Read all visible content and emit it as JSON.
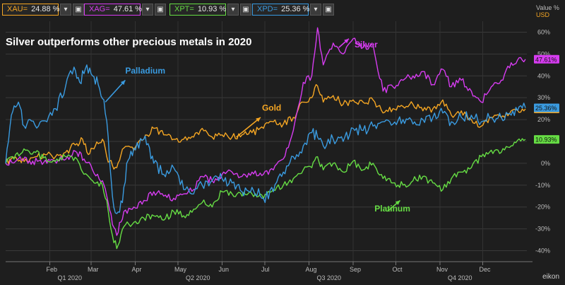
{
  "legend": [
    {
      "ric": "XAU=",
      "value": "24.88 %",
      "color": "#f5a623",
      "series_index": 0
    },
    {
      "ric": "XAG=",
      "value": "47.61 %",
      "color": "#d63cf0",
      "series_index": 1
    },
    {
      "ric": "XPT=",
      "value": "10.93 %",
      "color": "#66dd44",
      "series_index": 2
    },
    {
      "ric": "XPD=",
      "value": "25.36 %",
      "color": "#3a9be0",
      "series_index": 3
    }
  ],
  "watermark": "eikon",
  "chart_data": {
    "type": "line",
    "title": "Silver outperforms other precious metals in 2020",
    "ylabel": "Value %\nUSD",
    "ylim": [
      -45,
      65
    ],
    "yticks": [
      -40,
      -30,
      -20,
      -10,
      0,
      10,
      20,
      30,
      40,
      50,
      60
    ],
    "ytick_suffix": "%",
    "xlim": [
      "2020-01-01",
      "2021-01-01"
    ],
    "x_months": [
      {
        "label": "Feb",
        "date": "2020-02-01"
      },
      {
        "label": "Mar",
        "date": "2020-03-01"
      },
      {
        "label": "Apr",
        "date": "2020-04-01"
      },
      {
        "label": "May",
        "date": "2020-05-01"
      },
      {
        "label": "Jun",
        "date": "2020-06-01"
      },
      {
        "label": "Jul",
        "date": "2020-07-01"
      },
      {
        "label": "Aug",
        "date": "2020-08-01"
      },
      {
        "label": "Sep",
        "date": "2020-09-01"
      },
      {
        "label": "Oct",
        "date": "2020-10-01"
      },
      {
        "label": "Nov",
        "date": "2020-11-01"
      },
      {
        "label": "Dec",
        "date": "2020-12-01"
      }
    ],
    "x_quarters": [
      {
        "label": "Q1 2020",
        "date": "2020-02-15"
      },
      {
        "label": "Q2 2020",
        "date": "2020-05-15"
      },
      {
        "label": "Q3 2020",
        "date": "2020-08-15"
      },
      {
        "label": "Q4 2020",
        "date": "2020-11-15"
      }
    ],
    "grid": true,
    "series": [
      {
        "name": "Gold",
        "color": "#f5a623",
        "end_label": "24.88%",
        "points": [
          [
            "2020-01-01",
            0
          ],
          [
            "2020-01-06",
            3
          ],
          [
            "2020-01-10",
            1
          ],
          [
            "2020-01-15",
            2
          ],
          [
            "2020-01-22",
            3
          ],
          [
            "2020-01-30",
            4
          ],
          [
            "2020-02-05",
            3
          ],
          [
            "2020-02-12",
            5
          ],
          [
            "2020-02-20",
            9
          ],
          [
            "2020-02-24",
            11
          ],
          [
            "2020-02-28",
            4
          ],
          [
            "2020-03-04",
            8
          ],
          [
            "2020-03-09",
            11
          ],
          [
            "2020-03-12",
            3
          ],
          [
            "2020-03-16",
            -1
          ],
          [
            "2020-03-19",
            -2
          ],
          [
            "2020-03-24",
            7
          ],
          [
            "2020-03-31",
            6
          ],
          [
            "2020-04-07",
            11
          ],
          [
            "2020-04-14",
            16
          ],
          [
            "2020-04-21",
            13
          ],
          [
            "2020-04-28",
            11
          ],
          [
            "2020-05-05",
            11
          ],
          [
            "2020-05-12",
            12
          ],
          [
            "2020-05-18",
            16
          ],
          [
            "2020-05-25",
            12
          ],
          [
            "2020-06-01",
            13
          ],
          [
            "2020-06-08",
            12
          ],
          [
            "2020-06-15",
            13
          ],
          [
            "2020-06-22",
            14
          ],
          [
            "2020-06-30",
            16
          ],
          [
            "2020-07-07",
            19
          ],
          [
            "2020-07-14",
            18
          ],
          [
            "2020-07-21",
            21
          ],
          [
            "2020-07-28",
            28
          ],
          [
            "2020-08-03",
            30
          ],
          [
            "2020-08-06",
            36
          ],
          [
            "2020-08-11",
            28
          ],
          [
            "2020-08-18",
            31
          ],
          [
            "2020-08-25",
            27
          ],
          [
            "2020-09-01",
            29
          ],
          [
            "2020-09-08",
            28
          ],
          [
            "2020-09-15",
            29
          ],
          [
            "2020-09-22",
            23
          ],
          [
            "2020-09-29",
            25
          ],
          [
            "2020-10-06",
            26
          ],
          [
            "2020-10-13",
            27
          ],
          [
            "2020-10-20",
            24
          ],
          [
            "2020-10-27",
            25
          ],
          [
            "2020-11-03",
            29
          ],
          [
            "2020-11-09",
            22
          ],
          [
            "2020-11-16",
            24
          ],
          [
            "2020-11-23",
            20
          ],
          [
            "2020-11-30",
            17
          ],
          [
            "2020-12-07",
            21
          ],
          [
            "2020-12-14",
            21
          ],
          [
            "2020-12-21",
            24
          ],
          [
            "2020-12-31",
            24.88
          ]
        ]
      },
      {
        "name": "Silver",
        "color": "#d63cf0",
        "end_label": "47.61%",
        "points": [
          [
            "2020-01-01",
            0
          ],
          [
            "2020-01-10",
            2
          ],
          [
            "2020-01-20",
            1
          ],
          [
            "2020-01-30",
            0
          ],
          [
            "2020-02-10",
            2
          ],
          [
            "2020-02-20",
            5
          ],
          [
            "2020-02-25",
            2
          ],
          [
            "2020-03-02",
            -3
          ],
          [
            "2020-03-09",
            -8
          ],
          [
            "2020-03-12",
            -15
          ],
          [
            "2020-03-16",
            -28
          ],
          [
            "2020-03-19",
            -33
          ],
          [
            "2020-03-24",
            -22
          ],
          [
            "2020-03-31",
            -20
          ],
          [
            "2020-04-07",
            -17
          ],
          [
            "2020-04-14",
            -13
          ],
          [
            "2020-04-21",
            -15
          ],
          [
            "2020-04-28",
            -16
          ],
          [
            "2020-05-05",
            -14
          ],
          [
            "2020-05-12",
            -12
          ],
          [
            "2020-05-18",
            -6
          ],
          [
            "2020-05-25",
            -8
          ],
          [
            "2020-06-01",
            -5
          ],
          [
            "2020-06-08",
            -4
          ],
          [
            "2020-06-15",
            -6
          ],
          [
            "2020-06-22",
            -4
          ],
          [
            "2020-06-30",
            -5
          ],
          [
            "2020-07-07",
            -3
          ],
          [
            "2020-07-14",
            2
          ],
          [
            "2020-07-21",
            15
          ],
          [
            "2020-07-28",
            37
          ],
          [
            "2020-08-03",
            40
          ],
          [
            "2020-08-07",
            62
          ],
          [
            "2020-08-11",
            45
          ],
          [
            "2020-08-18",
            55
          ],
          [
            "2020-08-25",
            50
          ],
          [
            "2020-09-01",
            57
          ],
          [
            "2020-09-08",
            53
          ],
          [
            "2020-09-15",
            54
          ],
          [
            "2020-09-22",
            33
          ],
          [
            "2020-09-29",
            35
          ],
          [
            "2020-10-06",
            38
          ],
          [
            "2020-10-13",
            40
          ],
          [
            "2020-10-20",
            42
          ],
          [
            "2020-10-27",
            36
          ],
          [
            "2020-11-03",
            43
          ],
          [
            "2020-11-09",
            35
          ],
          [
            "2020-11-16",
            38
          ],
          [
            "2020-11-23",
            33
          ],
          [
            "2020-11-30",
            28
          ],
          [
            "2020-12-07",
            35
          ],
          [
            "2020-12-14",
            38
          ],
          [
            "2020-12-21",
            46
          ],
          [
            "2020-12-31",
            47.61
          ]
        ]
      },
      {
        "name": "Platinum",
        "color": "#66dd44",
        "end_label": "10.93%",
        "points": [
          [
            "2020-01-01",
            0
          ],
          [
            "2020-01-08",
            4
          ],
          [
            "2020-01-15",
            6
          ],
          [
            "2020-01-22",
            5
          ],
          [
            "2020-01-30",
            1
          ],
          [
            "2020-02-06",
            2
          ],
          [
            "2020-02-13",
            3
          ],
          [
            "2020-02-20",
            2
          ],
          [
            "2020-02-25",
            -5
          ],
          [
            "2020-03-02",
            -8
          ],
          [
            "2020-03-09",
            -10
          ],
          [
            "2020-03-12",
            -17
          ],
          [
            "2020-03-16",
            -33
          ],
          [
            "2020-03-19",
            -39
          ],
          [
            "2020-03-24",
            -29
          ],
          [
            "2020-03-31",
            -27
          ],
          [
            "2020-04-07",
            -25
          ],
          [
            "2020-04-14",
            -24
          ],
          [
            "2020-04-21",
            -26
          ],
          [
            "2020-04-28",
            -22
          ],
          [
            "2020-05-05",
            -24
          ],
          [
            "2020-05-12",
            -21
          ],
          [
            "2020-05-18",
            -18
          ],
          [
            "2020-05-25",
            -20
          ],
          [
            "2020-06-01",
            -13
          ],
          [
            "2020-06-08",
            -14
          ],
          [
            "2020-06-15",
            -15
          ],
          [
            "2020-06-22",
            -14
          ],
          [
            "2020-06-30",
            -16
          ],
          [
            "2020-07-07",
            -12
          ],
          [
            "2020-07-14",
            -10
          ],
          [
            "2020-07-21",
            -7
          ],
          [
            "2020-07-28",
            -3
          ],
          [
            "2020-08-03",
            -2
          ],
          [
            "2020-08-07",
            3
          ],
          [
            "2020-08-11",
            -3
          ],
          [
            "2020-08-18",
            0
          ],
          [
            "2020-08-25",
            -4
          ],
          [
            "2020-09-01",
            1
          ],
          [
            "2020-09-08",
            -3
          ],
          [
            "2020-09-15",
            0
          ],
          [
            "2020-09-22",
            -7
          ],
          [
            "2020-09-29",
            -9
          ],
          [
            "2020-10-06",
            -10
          ],
          [
            "2020-10-13",
            -8
          ],
          [
            "2020-10-20",
            -6
          ],
          [
            "2020-10-27",
            -9
          ],
          [
            "2020-11-03",
            -12
          ],
          [
            "2020-11-09",
            -7
          ],
          [
            "2020-11-16",
            -4
          ],
          [
            "2020-11-23",
            -2
          ],
          [
            "2020-11-30",
            3
          ],
          [
            "2020-12-07",
            6
          ],
          [
            "2020-12-14",
            5
          ],
          [
            "2020-12-21",
            8
          ],
          [
            "2020-12-31",
            10.93
          ]
        ]
      },
      {
        "name": "Palladium",
        "color": "#3a9be0",
        "end_label": "25.36%",
        "points": [
          [
            "2020-01-01",
            0
          ],
          [
            "2020-01-05",
            22
          ],
          [
            "2020-01-10",
            28
          ],
          [
            "2020-01-14",
            17
          ],
          [
            "2020-01-18",
            20
          ],
          [
            "2020-01-24",
            17
          ],
          [
            "2020-01-30",
            19
          ],
          [
            "2020-02-05",
            25
          ],
          [
            "2020-02-12",
            35
          ],
          [
            "2020-02-18",
            44
          ],
          [
            "2020-02-22",
            37
          ],
          [
            "2020-02-27",
            45
          ],
          [
            "2020-03-02",
            40
          ],
          [
            "2020-03-06",
            36
          ],
          [
            "2020-03-10",
            29
          ],
          [
            "2020-03-13",
            12
          ],
          [
            "2020-03-16",
            -15
          ],
          [
            "2020-03-19",
            -23
          ],
          [
            "2020-03-23",
            -18
          ],
          [
            "2020-03-26",
            0
          ],
          [
            "2020-03-31",
            7
          ],
          [
            "2020-04-07",
            11
          ],
          [
            "2020-04-10",
            9
          ],
          [
            "2020-04-14",
            0
          ],
          [
            "2020-04-21",
            -5
          ],
          [
            "2020-04-28",
            -2
          ],
          [
            "2020-05-05",
            -12
          ],
          [
            "2020-05-12",
            -14
          ],
          [
            "2020-05-18",
            -10
          ],
          [
            "2020-05-25",
            -8
          ],
          [
            "2020-06-01",
            -7
          ],
          [
            "2020-06-08",
            -9
          ],
          [
            "2020-06-15",
            -13
          ],
          [
            "2020-06-22",
            -11
          ],
          [
            "2020-06-30",
            -16
          ],
          [
            "2020-07-07",
            -13
          ],
          [
            "2020-07-14",
            -4
          ],
          [
            "2020-07-21",
            3
          ],
          [
            "2020-07-28",
            8
          ],
          [
            "2020-08-03",
            14
          ],
          [
            "2020-08-07",
            12
          ],
          [
            "2020-08-11",
            8
          ],
          [
            "2020-08-18",
            11
          ],
          [
            "2020-08-25",
            10
          ],
          [
            "2020-09-01",
            16
          ],
          [
            "2020-09-08",
            15
          ],
          [
            "2020-09-15",
            17
          ],
          [
            "2020-09-22",
            19
          ],
          [
            "2020-09-29",
            18
          ],
          [
            "2020-10-06",
            20
          ],
          [
            "2020-10-13",
            18
          ],
          [
            "2020-10-20",
            20
          ],
          [
            "2020-10-27",
            21
          ],
          [
            "2020-11-03",
            23
          ],
          [
            "2020-11-09",
            19
          ],
          [
            "2020-11-16",
            21
          ],
          [
            "2020-11-23",
            22
          ],
          [
            "2020-11-30",
            19
          ],
          [
            "2020-12-07",
            21
          ],
          [
            "2020-12-14",
            21
          ],
          [
            "2020-12-21",
            22
          ],
          [
            "2020-12-31",
            25.36
          ]
        ]
      }
    ],
    "annotations": [
      {
        "text": "Palladium",
        "series_index": 3,
        "arrow_from": [
          "2020-03-11",
          28
        ],
        "arrow_to": [
          "2020-03-25",
          38
        ],
        "text_at": [
          "2020-03-25",
          41
        ]
      },
      {
        "text": "Gold",
        "series_index": 0,
        "arrow_from": [
          "2020-06-11",
          12
        ],
        "arrow_to": [
          "2020-06-28",
          21
        ],
        "text_at": [
          "2020-06-29",
          24
        ]
      },
      {
        "text": "Silver",
        "series_index": 1,
        "arrow_from": [
          "2020-08-22",
          53
        ],
        "arrow_to": [
          "2020-08-29",
          57
        ],
        "text_at": [
          "2020-09-02",
          53
        ]
      },
      {
        "text": "Platinum",
        "series_index": 2,
        "arrow_from": [
          "2020-09-25",
          -22
        ],
        "arrow_to": [
          "2020-10-04",
          -17
        ],
        "text_at": [
          "2020-09-16",
          -22
        ]
      }
    ]
  }
}
